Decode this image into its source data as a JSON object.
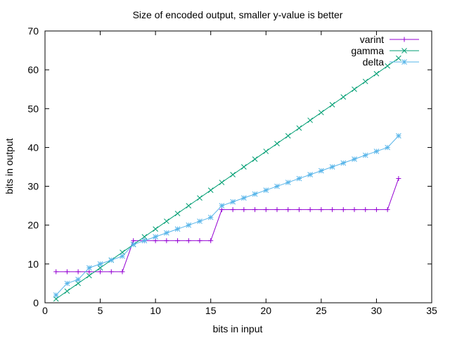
{
  "chart_data": {
    "type": "line",
    "title": "Size of encoded output, smaller y-value is better",
    "xlabel": "bits in input",
    "ylabel": "bits in output",
    "xlim": [
      0,
      35
    ],
    "ylim": [
      0,
      70
    ],
    "xticks": [
      0,
      5,
      10,
      15,
      20,
      25,
      30,
      35
    ],
    "yticks": [
      0,
      10,
      20,
      30,
      40,
      50,
      60,
      70
    ],
    "grid": false,
    "legend_position": "top-right",
    "x": [
      1,
      2,
      3,
      4,
      5,
      6,
      7,
      8,
      9,
      10,
      11,
      12,
      13,
      14,
      15,
      16,
      17,
      18,
      19,
      20,
      21,
      22,
      23,
      24,
      25,
      26,
      27,
      28,
      29,
      30,
      31,
      32
    ],
    "series": [
      {
        "name": "varint",
        "color": "#9400d3",
        "marker": "plus",
        "values": [
          8,
          8,
          8,
          8,
          8,
          8,
          8,
          16,
          16,
          16,
          16,
          16,
          16,
          16,
          16,
          24,
          24,
          24,
          24,
          24,
          24,
          24,
          24,
          24,
          24,
          24,
          24,
          24,
          24,
          24,
          24,
          32
        ]
      },
      {
        "name": "gamma",
        "color": "#009e73",
        "marker": "cross",
        "values": [
          1,
          3,
          5,
          7,
          9,
          11,
          13,
          15,
          17,
          19,
          21,
          23,
          25,
          27,
          29,
          31,
          33,
          35,
          37,
          39,
          41,
          43,
          45,
          47,
          49,
          51,
          53,
          55,
          57,
          59,
          61,
          63
        ]
      },
      {
        "name": "delta",
        "color": "#56b4e9",
        "marker": "star",
        "values": [
          2,
          5,
          6,
          9,
          10,
          11,
          12,
          15,
          16,
          17,
          18,
          19,
          20,
          21,
          22,
          25,
          26,
          27,
          28,
          29,
          30,
          31,
          32,
          33,
          34,
          35,
          36,
          37,
          38,
          39,
          40,
          43
        ]
      }
    ]
  }
}
